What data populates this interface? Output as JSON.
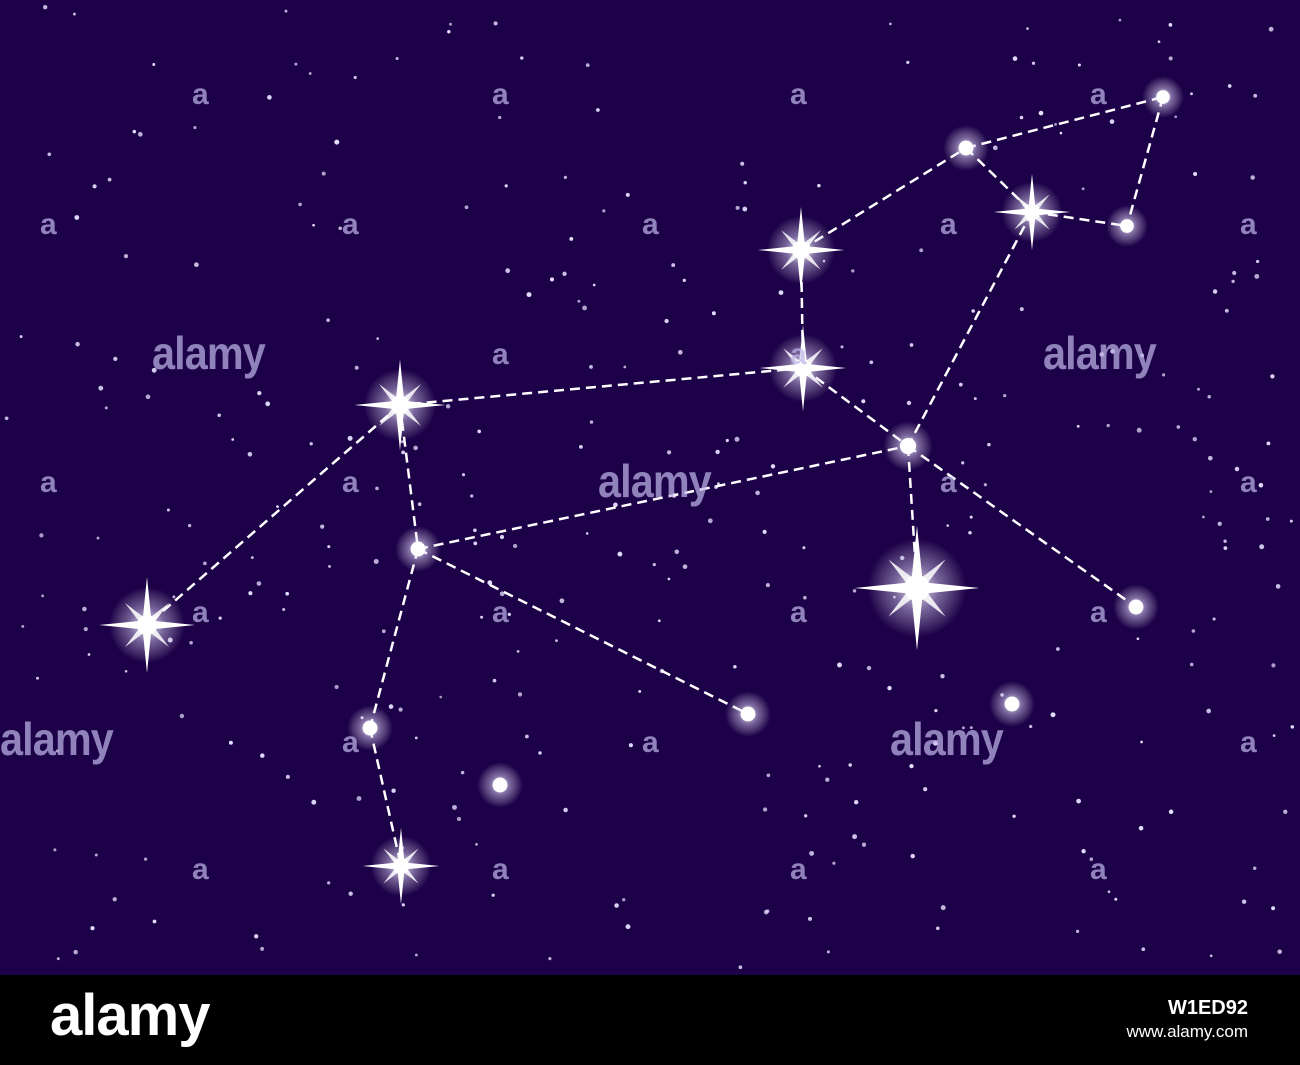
{
  "colors": {
    "sky": "#1c0048",
    "line": "#ffffff",
    "star": "#ffffff",
    "footer": "#000000",
    "watermark": "#beb4e6"
  },
  "watermark_text": "alamy",
  "watermark_letter": "a",
  "footer": {
    "logo": "alamy",
    "image_id": "W1ED92",
    "site": "www.alamy.com"
  }
}
